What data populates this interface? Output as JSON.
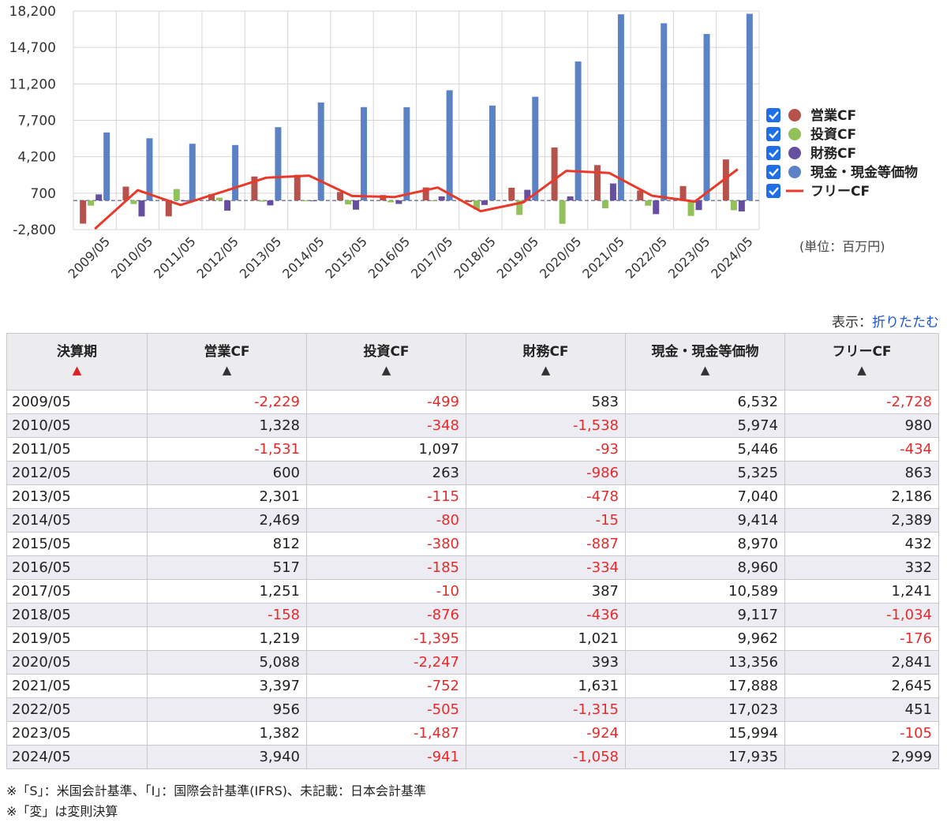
{
  "chart_data": {
    "type": "bar",
    "categories": [
      "2009/05",
      "2010/05",
      "2011/05",
      "2012/05",
      "2013/05",
      "2014/05",
      "2015/05",
      "2016/05",
      "2017/05",
      "2018/05",
      "2019/05",
      "2020/05",
      "2021/05",
      "2022/05",
      "2023/05",
      "2024/05"
    ],
    "series": [
      {
        "name": "営業CF",
        "type": "bar",
        "color": "#b5524b",
        "values": [
          -2229,
          1328,
          -1531,
          600,
          2301,
          2469,
          812,
          517,
          1251,
          -158,
          1219,
          5088,
          3397,
          956,
          1382,
          3940
        ]
      },
      {
        "name": "投資CF",
        "type": "bar",
        "color": "#92c05a",
        "values": [
          -499,
          -348,
          1097,
          263,
          -115,
          -80,
          -380,
          -185,
          -10,
          -876,
          -1395,
          -2247,
          -752,
          -505,
          -1487,
          -941
        ]
      },
      {
        "name": "財務CF",
        "type": "bar",
        "color": "#674fa0",
        "values": [
          583,
          -1538,
          -93,
          -986,
          -478,
          -15,
          -887,
          -334,
          387,
          -436,
          1021,
          393,
          1631,
          -1315,
          -924,
          -1058
        ]
      },
      {
        "name": "現金・現金等価物",
        "type": "bar",
        "color": "#5b82c5",
        "values": [
          6532,
          5974,
          5446,
          5325,
          7040,
          9414,
          8970,
          8960,
          10589,
          9117,
          9962,
          13356,
          17888,
          17023,
          15994,
          17935
        ]
      },
      {
        "name": "フリーCF",
        "type": "line",
        "color": "#e8392a",
        "values": [
          -2728,
          980,
          -434,
          863,
          2186,
          2389,
          432,
          332,
          1241,
          -1034,
          -176,
          2841,
          2645,
          451,
          -105,
          2999
        ]
      }
    ],
    "yticks": [
      "18,200",
      "14,700",
      "11,200",
      "7,700",
      "4,200",
      "700",
      "-2,800"
    ],
    "ylim": [
      -2800,
      18200
    ],
    "grid": true,
    "legend": "right",
    "unit_label": "(単位：百万円)"
  },
  "display": {
    "label": "表示：",
    "link": "折りたたむ"
  },
  "table": {
    "headers": [
      "決算期",
      "営業CF",
      "投資CF",
      "財務CF",
      "現金・現金等価物",
      "フリーCF"
    ],
    "sort_active": "▲",
    "sort_inactive": "▲",
    "rows": [
      [
        "2009/05",
        "-2,229",
        "-499",
        "583",
        "6,532",
        "-2,728"
      ],
      [
        "2010/05",
        "1,328",
        "-348",
        "-1,538",
        "5,974",
        "980"
      ],
      [
        "2011/05",
        "-1,531",
        "1,097",
        "-93",
        "5,446",
        "-434"
      ],
      [
        "2012/05",
        "600",
        "263",
        "-986",
        "5,325",
        "863"
      ],
      [
        "2013/05",
        "2,301",
        "-115",
        "-478",
        "7,040",
        "2,186"
      ],
      [
        "2014/05",
        "2,469",
        "-80",
        "-15",
        "9,414",
        "2,389"
      ],
      [
        "2015/05",
        "812",
        "-380",
        "-887",
        "8,970",
        "432"
      ],
      [
        "2016/05",
        "517",
        "-185",
        "-334",
        "8,960",
        "332"
      ],
      [
        "2017/05",
        "1,251",
        "-10",
        "387",
        "10,589",
        "1,241"
      ],
      [
        "2018/05",
        "-158",
        "-876",
        "-436",
        "9,117",
        "-1,034"
      ],
      [
        "2019/05",
        "1,219",
        "-1,395",
        "1,021",
        "9,962",
        "-176"
      ],
      [
        "2020/05",
        "5,088",
        "-2,247",
        "393",
        "13,356",
        "2,841"
      ],
      [
        "2021/05",
        "3,397",
        "-752",
        "1,631",
        "17,888",
        "2,645"
      ],
      [
        "2022/05",
        "956",
        "-505",
        "-1,315",
        "17,023",
        "451"
      ],
      [
        "2023/05",
        "1,382",
        "-1,487",
        "-924",
        "15,994",
        "-105"
      ],
      [
        "2024/05",
        "3,940",
        "-941",
        "-1,058",
        "17,935",
        "2,999"
      ]
    ]
  },
  "notes": [
    "※「S」：米国会計基準、「I」：国際会計基準(IFRS)、未記載：日本会計基準",
    "※「変」は変則決算"
  ]
}
